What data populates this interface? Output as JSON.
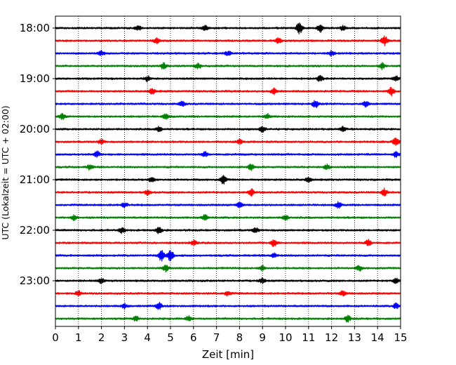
{
  "chart_data": {
    "type": "line",
    "xlabel": "Zeit  [min]",
    "ylabel": "UTC (Lokalzeit = UTC + 02:00)",
    "xlim": [
      0,
      15
    ],
    "x_ticks": [
      0,
      1,
      2,
      3,
      4,
      5,
      6,
      7,
      8,
      9,
      10,
      11,
      12,
      13,
      14,
      15
    ],
    "x_tick_labels": [
      "0",
      "1",
      "2",
      "3",
      "4",
      "5",
      "6",
      "7",
      "8",
      "9",
      "10",
      "11",
      "12",
      "13",
      "14",
      "15"
    ],
    "grid": "x-dotted",
    "y_tick_labels": [
      "18:00",
      "19:00",
      "20:00",
      "21:00",
      "22:00",
      "23:00"
    ],
    "y_tick_rows": [
      0,
      4,
      8,
      12,
      16,
      20
    ],
    "trace_colors": [
      "#000000",
      "#ff0000",
      "#0000ff",
      "#008000"
    ],
    "traces": [
      {
        "start": "18:00",
        "color": "#000000",
        "events": [
          [
            10.6,
            3.2
          ],
          [
            11.5,
            2.0
          ],
          [
            3.6,
            1.2
          ],
          [
            6.5,
            1.2
          ],
          [
            12.5,
            1.3
          ]
        ]
      },
      {
        "start": "18:15",
        "color": "#ff0000",
        "events": [
          [
            14.3,
            2.6
          ],
          [
            4.4,
            1.3
          ],
          [
            9.7,
            1.4
          ]
        ]
      },
      {
        "start": "18:30",
        "color": "#0000ff",
        "events": [
          [
            2.0,
            1.3
          ],
          [
            7.5,
            1.3
          ],
          [
            12.0,
            1.3
          ]
        ]
      },
      {
        "start": "18:45",
        "color": "#008000",
        "events": [
          [
            4.7,
            1.8
          ],
          [
            6.2,
            1.4
          ],
          [
            14.2,
            1.6
          ]
        ]
      },
      {
        "start": "19:00",
        "color": "#000000",
        "events": [
          [
            4.0,
            1.4
          ],
          [
            11.5,
            1.7
          ],
          [
            14.8,
            1.4
          ]
        ]
      },
      {
        "start": "19:15",
        "color": "#ff0000",
        "events": [
          [
            4.2,
            1.6
          ],
          [
            9.5,
            1.5
          ],
          [
            14.6,
            2.2
          ]
        ]
      },
      {
        "start": "19:30",
        "color": "#0000ff",
        "events": [
          [
            11.3,
            2.2
          ],
          [
            5.5,
            1.3
          ],
          [
            13.5,
            1.4
          ]
        ]
      },
      {
        "start": "19:45",
        "color": "#008000",
        "events": [
          [
            0.3,
            1.5
          ],
          [
            4.8,
            1.4
          ],
          [
            9.2,
            1.4
          ]
        ]
      },
      {
        "start": "20:00",
        "color": "#000000",
        "events": [
          [
            9.0,
            1.6
          ],
          [
            4.5,
            1.3
          ],
          [
            12.5,
            1.3
          ]
        ]
      },
      {
        "start": "20:15",
        "color": "#ff0000",
        "events": [
          [
            14.8,
            2.2
          ],
          [
            2.0,
            1.3
          ],
          [
            8.0,
            1.3
          ]
        ]
      },
      {
        "start": "20:30",
        "color": "#0000ff",
        "events": [
          [
            1.8,
            1.6
          ],
          [
            6.5,
            1.3
          ],
          [
            14.8,
            1.5
          ]
        ]
      },
      {
        "start": "20:45",
        "color": "#008000",
        "events": [
          [
            8.5,
            1.7
          ],
          [
            1.5,
            1.3
          ],
          [
            11.8,
            1.4
          ]
        ]
      },
      {
        "start": "21:00",
        "color": "#000000",
        "events": [
          [
            7.3,
            2.4
          ],
          [
            4.2,
            1.4
          ],
          [
            11.0,
            1.3
          ]
        ]
      },
      {
        "start": "21:15",
        "color": "#ff0000",
        "events": [
          [
            8.5,
            1.9
          ],
          [
            14.3,
            1.9
          ],
          [
            4.0,
            1.3
          ]
        ]
      },
      {
        "start": "21:30",
        "color": "#0000ff",
        "events": [
          [
            8.0,
            1.6
          ],
          [
            12.3,
            1.6
          ],
          [
            3.0,
            1.3
          ]
        ]
      },
      {
        "start": "21:45",
        "color": "#008000",
        "events": [
          [
            0.8,
            1.4
          ],
          [
            6.5,
            1.6
          ],
          [
            10.0,
            1.4
          ]
        ]
      },
      {
        "start": "22:00",
        "color": "#000000",
        "events": [
          [
            4.5,
            1.8
          ],
          [
            2.9,
            1.5
          ],
          [
            8.7,
            1.4
          ]
        ]
      },
      {
        "start": "22:15",
        "color": "#ff0000",
        "events": [
          [
            9.5,
            1.9
          ],
          [
            13.6,
            1.7
          ],
          [
            6.0,
            1.3
          ]
        ]
      },
      {
        "start": "22:30",
        "color": "#0000ff",
        "events": [
          [
            4.6,
            3.0
          ],
          [
            5.0,
            3.2
          ],
          [
            9.5,
            1.4
          ]
        ]
      },
      {
        "start": "22:45",
        "color": "#008000",
        "events": [
          [
            4.8,
            1.6
          ],
          [
            9.0,
            1.4
          ],
          [
            13.2,
            1.4
          ]
        ]
      },
      {
        "start": "23:00",
        "color": "#000000",
        "events": [
          [
            2.0,
            1.4
          ],
          [
            9.0,
            1.3
          ],
          [
            14.8,
            1.4
          ]
        ]
      },
      {
        "start": "23:15",
        "color": "#ff0000",
        "events": [
          [
            1.0,
            1.2
          ],
          [
            7.5,
            1.3
          ],
          [
            12.5,
            1.3
          ]
        ]
      },
      {
        "start": "23:30",
        "color": "#0000ff",
        "events": [
          [
            4.5,
            1.8
          ],
          [
            3.0,
            1.3
          ],
          [
            14.8,
            1.4
          ]
        ]
      },
      {
        "start": "23:45",
        "color": "#008000",
        "events": [
          [
            5.8,
            1.4
          ],
          [
            12.7,
            1.6
          ],
          [
            3.5,
            1.3
          ]
        ]
      }
    ]
  }
}
